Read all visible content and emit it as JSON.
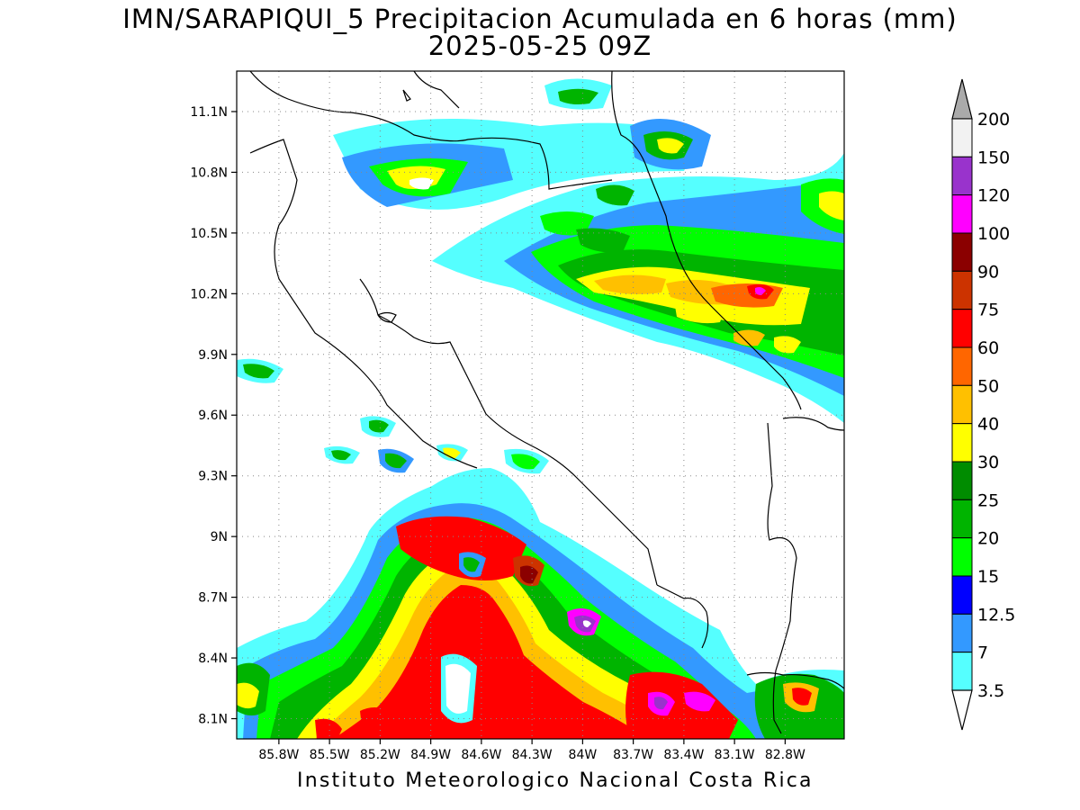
{
  "title": "IMN/SARAPIQUI_5 Precipitacion Acumulada en 6 horas (mm)",
  "subtitle": "2025-05-25 09Z",
  "footer": "Instituto Meteorologico Nacional Costa Rica",
  "map": {
    "lon_range": [
      -86.05,
      -82.45
    ],
    "lat_range": [
      8.0,
      11.3
    ],
    "lat_ticks": [
      {
        "value": 11.1,
        "label": "11.1N"
      },
      {
        "value": 10.8,
        "label": "10.8N"
      },
      {
        "value": 10.5,
        "label": "10.5N"
      },
      {
        "value": 10.2,
        "label": "10.2N"
      },
      {
        "value": 9.9,
        "label": "9.9N"
      },
      {
        "value": 9.6,
        "label": "9.6N"
      },
      {
        "value": 9.3,
        "label": "9.3N"
      },
      {
        "value": 9.0,
        "label": "9N"
      },
      {
        "value": 8.7,
        "label": "8.7N"
      },
      {
        "value": 8.4,
        "label": "8.4N"
      },
      {
        "value": 8.1,
        "label": "8.1N"
      }
    ],
    "lon_ticks": [
      {
        "value": -85.8,
        "label": "85.8W"
      },
      {
        "value": -85.5,
        "label": "85.5W"
      },
      {
        "value": -85.2,
        "label": "85.2W"
      },
      {
        "value": -84.9,
        "label": "84.9W"
      },
      {
        "value": -84.6,
        "label": "84.6W"
      },
      {
        "value": -84.3,
        "label": "84.3W"
      },
      {
        "value": -84.0,
        "label": "84W"
      },
      {
        "value": -83.7,
        "label": "83.7W"
      },
      {
        "value": -83.4,
        "label": "83.4W"
      },
      {
        "value": -83.1,
        "label": "83.1W"
      },
      {
        "value": -82.8,
        "label": "82.8W"
      }
    ]
  },
  "legend": {
    "labels": [
      "200",
      "150",
      "120",
      "100",
      "90",
      "75",
      "60",
      "50",
      "40",
      "30",
      "25",
      "20",
      "15",
      "12.5",
      "7",
      "3.5"
    ],
    "colors": [
      "#f2f2f2",
      "#9933cc",
      "#ff00ff",
      "#8b0000",
      "#cc3300",
      "#ff0000",
      "#ff6600",
      "#ffc000",
      "#ffff00",
      "#008c00",
      "#00b400",
      "#00ff00",
      "#0000ff",
      "#3399ff",
      "#55ffff"
    ],
    "over_color": "#aaaaaa"
  }
}
